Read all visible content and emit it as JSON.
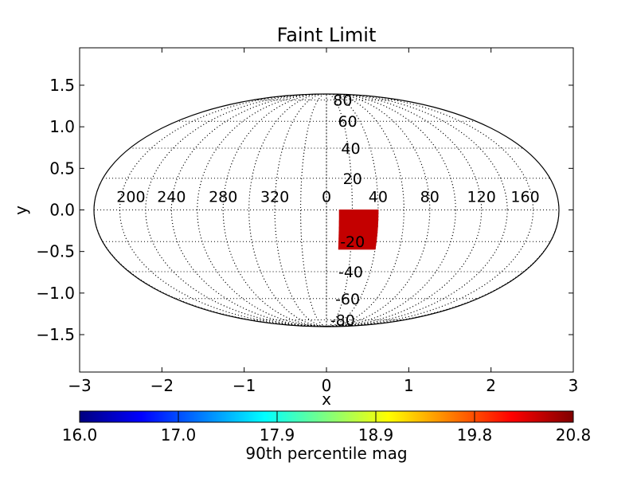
{
  "chart_data": {
    "type": "map",
    "title": "Faint Limit",
    "xlabel": "x",
    "ylabel": "y",
    "xlim": [
      -3,
      3
    ],
    "ylim": [
      -1.95,
      1.95
    ],
    "projection": "mollweide",
    "grid": true,
    "x_ticks": [
      {
        "value": -3,
        "label": "−3"
      },
      {
        "value": -2,
        "label": "−2"
      },
      {
        "value": -1,
        "label": "−1"
      },
      {
        "value": 0,
        "label": "0"
      },
      {
        "value": 1,
        "label": "1"
      },
      {
        "value": 2,
        "label": "2"
      },
      {
        "value": 3,
        "label": "3"
      }
    ],
    "y_ticks": [
      {
        "value": 1.5,
        "label": "1.5"
      },
      {
        "value": 1.0,
        "label": "1.0"
      },
      {
        "value": 0.5,
        "label": "0.5"
      },
      {
        "value": 0.0,
        "label": "0.0"
      },
      {
        "value": -0.5,
        "label": "−0.5"
      },
      {
        "value": -1.0,
        "label": "−1.0"
      },
      {
        "value": -1.5,
        "label": "−1.5"
      }
    ],
    "meridian_labels": [
      {
        "lon": 200,
        "label": "200"
      },
      {
        "lon": 240,
        "label": "240"
      },
      {
        "lon": 280,
        "label": "280"
      },
      {
        "lon": 320,
        "label": "320"
      },
      {
        "lon": 0,
        "label": "0"
      },
      {
        "lon": 40,
        "label": "40"
      },
      {
        "lon": 80,
        "label": "80"
      },
      {
        "lon": 120,
        "label": "120"
      },
      {
        "lon": 160,
        "label": "160"
      }
    ],
    "parallel_labels": [
      {
        "lat": 80,
        "label": "80"
      },
      {
        "lat": 60,
        "label": "60"
      },
      {
        "lat": 40,
        "label": "40"
      },
      {
        "lat": 20,
        "label": "20"
      },
      {
        "lat": -20,
        "label": "-20"
      },
      {
        "lat": -40,
        "label": "-40"
      },
      {
        "lat": -60,
        "label": "-60"
      },
      {
        "lat": -80,
        "label": "-80"
      }
    ],
    "data_region": {
      "lon_range_deg": [
        10,
        40
      ],
      "lat_range_deg": [
        -25,
        0
      ],
      "value": 20.6,
      "color": "#c40000"
    },
    "colorbar": {
      "label": "90th percentile mag",
      "min": 16.0,
      "max": 20.8,
      "ticks": [
        {
          "value": 16.0,
          "label": "16.0"
        },
        {
          "value": 16.96,
          "label": "17.0"
        },
        {
          "value": 17.92,
          "label": "17.9"
        },
        {
          "value": 18.88,
          "label": "18.9"
        },
        {
          "value": 19.84,
          "label": "19.8"
        },
        {
          "value": 20.8,
          "label": "20.8"
        }
      ],
      "colormap": "jet",
      "colormap_stops": [
        "#00007f",
        "#0000ff",
        "#007fff",
        "#00ffff",
        "#7fff7f",
        "#ffff00",
        "#ff7f00",
        "#ff0000",
        "#7f0000"
      ]
    }
  }
}
